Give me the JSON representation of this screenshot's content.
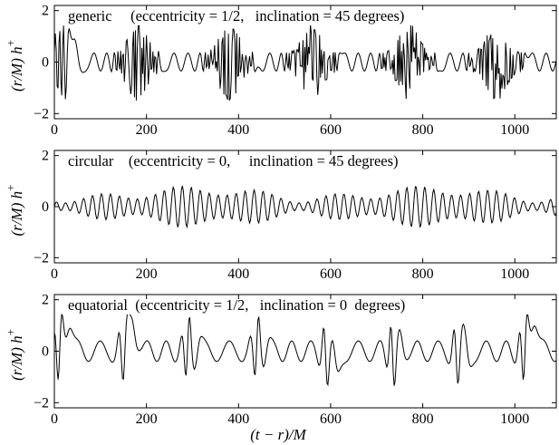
{
  "chart_data": [
    {
      "type": "line",
      "title": "generic     (eccentricity = 1/2,   inclination = 45 degrees)",
      "xlabel": "",
      "ylabel": "(r/M) h",
      "ylabel_sub": "+",
      "xlim": [
        0,
        1090
      ],
      "ylim": [
        -2.2,
        2.2
      ],
      "xticks": [
        0,
        200,
        400,
        600,
        800,
        1000
      ],
      "yticks": [
        -2,
        0,
        2
      ],
      "series": [
        {
          "sampled_every": 2,
          "y": []
        }
      ]
    },
    {
      "type": "line",
      "title": "circular    (eccentricity = 0,     inclination = 45 degrees)",
      "xlabel": "",
      "ylabel": "(r/M) h",
      "ylabel_sub": "+",
      "xlim": [
        0,
        1090
      ],
      "ylim": [
        -2.2,
        2.2
      ],
      "xticks": [
        0,
        200,
        400,
        600,
        800,
        1000
      ],
      "yticks": [
        -2,
        0,
        2
      ],
      "series": [
        {
          "sampled_every": 2,
          "y": []
        }
      ]
    },
    {
      "type": "line",
      "title": "equatorial  (eccentricity = 1/2,   inclination = 0  degrees)",
      "xlabel": "(t − r)/M",
      "ylabel": "(r/M) h",
      "ylabel_sub": "+",
      "xlim": [
        0,
        1090
      ],
      "ylim": [
        -2.2,
        2.2
      ],
      "xticks": [
        0,
        200,
        400,
        600,
        800,
        1000
      ],
      "yticks": [
        -2,
        0,
        2
      ],
      "series": [
        {
          "sampled_every": 2,
          "y": []
        }
      ]
    }
  ]
}
